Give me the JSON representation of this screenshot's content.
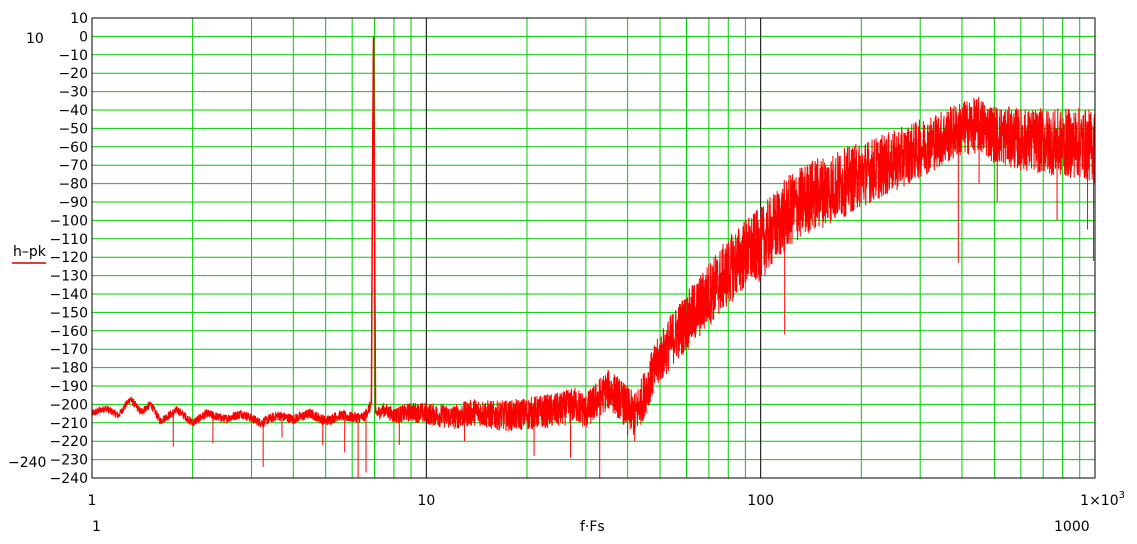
{
  "chart_data": {
    "type": "line",
    "title": "",
    "xlabel": "f·Fs",
    "ylabel": "h–pk",
    "x_scale": "log",
    "xlim": [
      1,
      1000
    ],
    "ylim": [
      -240,
      10
    ],
    "y_ticks": [
      "10",
      "0",
      "−10",
      "−20",
      "−30",
      "−40",
      "−50",
      "−60",
      "−70",
      "−80",
      "−90",
      "−100",
      "−110",
      "−120",
      "−130",
      "−140",
      "−150",
      "−160",
      "−170",
      "−180",
      "−190",
      "−200",
      "−210",
      "−220",
      "−230",
      "−240"
    ],
    "x_ticks": [
      "1",
      "10",
      "100",
      "1×10³"
    ],
    "y_range_min_label": "−240",
    "y_range_max_label": "10",
    "x_range_min_label": "1",
    "x_range_max_label": "1000",
    "grid": true,
    "colors": {
      "series": "#ff0000",
      "grid": "#00cc00",
      "decade_grid": "#000000"
    },
    "series": [
      {
        "name": "",
        "points": [
          [
            1.0,
            -205
          ],
          [
            1.1,
            -202
          ],
          [
            1.2,
            -206
          ],
          [
            1.3,
            -197
          ],
          [
            1.4,
            -204
          ],
          [
            1.5,
            -200
          ],
          [
            1.6,
            -209
          ],
          [
            1.8,
            -203
          ],
          [
            2.0,
            -210
          ],
          [
            2.2,
            -205
          ],
          [
            2.5,
            -208
          ],
          [
            2.8,
            -205
          ],
          [
            3.2,
            -210
          ],
          [
            3.6,
            -206
          ],
          [
            4.0,
            -208
          ],
          [
            4.5,
            -205
          ],
          [
            5.0,
            -209
          ],
          [
            5.5,
            -206
          ],
          [
            6.0,
            -207
          ],
          [
            6.5,
            -207
          ],
          [
            6.85,
            -200
          ],
          [
            6.9,
            -80
          ],
          [
            6.95,
            0
          ],
          [
            7.0,
            -100
          ],
          [
            7.05,
            -205
          ],
          [
            7.5,
            -203
          ],
          [
            8.0,
            -206
          ],
          [
            9.0,
            -204
          ],
          [
            10.0,
            -205
          ],
          [
            12,
            -207
          ],
          [
            14,
            -204
          ],
          [
            16,
            -206
          ],
          [
            18,
            -206
          ],
          [
            20,
            -205
          ],
          [
            22,
            -204
          ],
          [
            25,
            -203
          ],
          [
            28,
            -200
          ],
          [
            30,
            -204
          ],
          [
            33,
            -196
          ],
          [
            35,
            -192
          ],
          [
            37,
            -195
          ],
          [
            40,
            -202
          ],
          [
            42,
            -206
          ],
          [
            44,
            -198
          ],
          [
            47,
            -185
          ],
          [
            50,
            -175
          ],
          [
            55,
            -163
          ],
          [
            60,
            -155
          ],
          [
            65,
            -148
          ],
          [
            70,
            -140
          ],
          [
            80,
            -128
          ],
          [
            90,
            -118
          ],
          [
            100,
            -113
          ],
          [
            120,
            -96
          ],
          [
            140,
            -87
          ],
          [
            160,
            -83
          ],
          [
            180,
            -79
          ],
          [
            200,
            -75
          ],
          [
            250,
            -68
          ],
          [
            300,
            -61
          ],
          [
            350,
            -55
          ],
          [
            400,
            -50
          ],
          [
            450,
            -48
          ],
          [
            500,
            -53
          ],
          [
            600,
            -56
          ],
          [
            700,
            -57
          ],
          [
            800,
            -58
          ],
          [
            900,
            -58
          ],
          [
            1000,
            -60
          ]
        ]
      }
    ],
    "spread_points": [
      [
        1.0,
        2
      ],
      [
        6.5,
        3
      ],
      [
        10,
        6
      ],
      [
        20,
        9
      ],
      [
        30,
        10
      ],
      [
        40,
        12
      ],
      [
        50,
        14
      ],
      [
        70,
        18
      ],
      [
        100,
        20
      ],
      [
        150,
        20
      ],
      [
        200,
        18
      ],
      [
        300,
        16
      ],
      [
        400,
        15
      ],
      [
        500,
        16
      ],
      [
        700,
        18
      ],
      [
        1000,
        20
      ]
    ],
    "dips": [
      [
        1.75,
        -223
      ],
      [
        2.3,
        -221
      ],
      [
        3.25,
        -234
      ],
      [
        3.7,
        -218
      ],
      [
        4.9,
        -222
      ],
      [
        5.7,
        -226
      ],
      [
        6.25,
        -240
      ],
      [
        6.6,
        -237
      ],
      [
        8.3,
        -222
      ],
      [
        13,
        -220
      ],
      [
        21,
        -228
      ],
      [
        27,
        -229
      ],
      [
        33,
        -240
      ],
      [
        40,
        -217
      ],
      [
        42,
        -220
      ],
      [
        118,
        -162
      ],
      [
        390,
        -123
      ],
      [
        450,
        -80
      ],
      [
        510,
        -90
      ],
      [
        770,
        -100
      ],
      [
        950,
        -105
      ],
      [
        990,
        -122
      ]
    ]
  }
}
